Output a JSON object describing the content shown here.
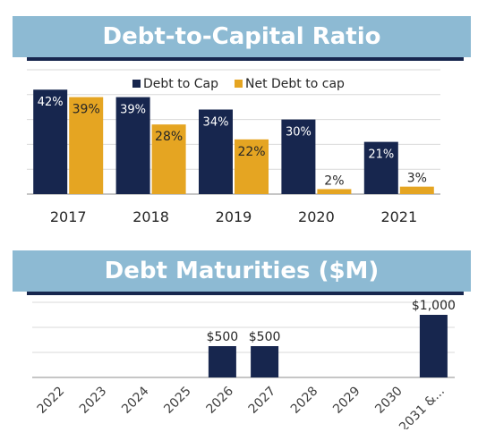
{
  "chart_data": [
    {
      "type": "bar",
      "title": "Debt-to-Capital Ratio",
      "categories": [
        "2017",
        "2018",
        "2019",
        "2020",
        "2021"
      ],
      "series": [
        {
          "name": "Debt to Cap",
          "values": [
            42,
            39,
            34,
            30,
            21
          ],
          "labels": [
            "42%",
            "39%",
            "34%",
            "30%",
            "21%"
          ],
          "color": "#17264e"
        },
        {
          "name": "Net Debt to cap",
          "values": [
            39,
            28,
            22,
            2,
            3
          ],
          "labels": [
            "39%",
            "28%",
            "22%",
            "2%",
            "3%"
          ],
          "color": "#e5a522"
        }
      ],
      "ylim": [
        0,
        50
      ],
      "grid": true,
      "legend": "top-right"
    },
    {
      "type": "bar",
      "title": "Debt Maturities ($M)",
      "categories": [
        "2022",
        "2023",
        "2024",
        "2025",
        "2026",
        "2027",
        "2028",
        "2029",
        "2030",
        "2031 &..."
      ],
      "values": [
        0,
        0,
        0,
        0,
        500,
        500,
        0,
        0,
        0,
        1000
      ],
      "labels": [
        "",
        "",
        "",
        "",
        "$500",
        "$500",
        "",
        "",
        "",
        "$1,000"
      ],
      "color": "#17264e",
      "ylim": [
        0,
        1200
      ],
      "grid": true
    }
  ]
}
